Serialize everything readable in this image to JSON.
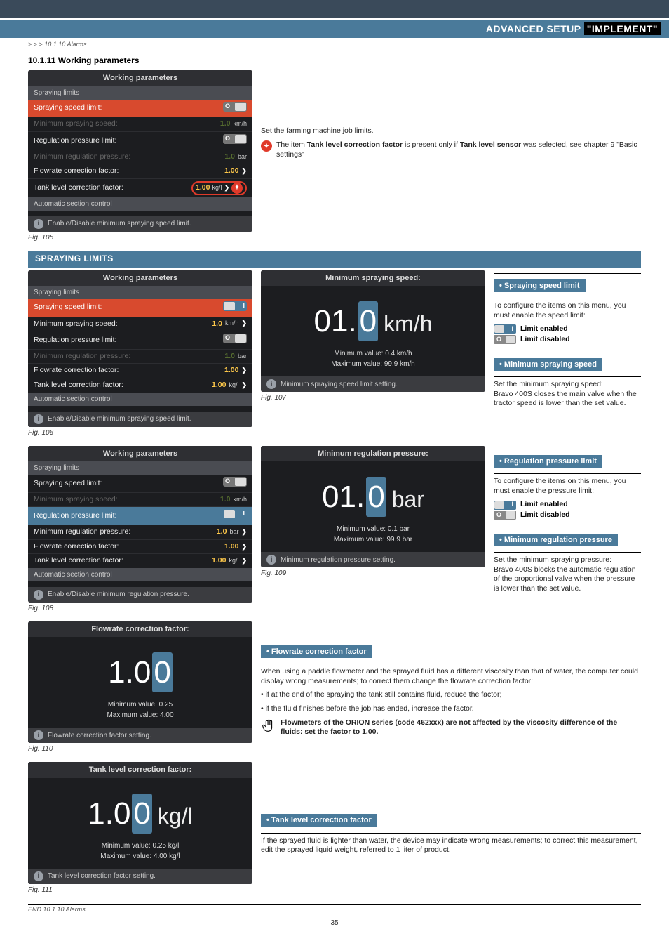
{
  "header": {
    "prefix": "ADVANCED SETUP",
    "highlight": "\"IMPLEMENT\""
  },
  "breadcrumb": "> > > 10.1.10 Alarms",
  "section_number": "10.1.11 Working parameters",
  "fig105": {
    "title": "Working parameters",
    "sub": "Spraying limits",
    "rows": [
      {
        "label": "Spraying speed limit:",
        "toggle": "off",
        "style": "sel"
      },
      {
        "label": "Minimum spraying speed:",
        "value": "1.0",
        "unit": "km/h",
        "style": "dim"
      },
      {
        "label": "Regulation pressure limit:",
        "toggle": "off",
        "style": ""
      },
      {
        "label": "Minimum regulation pressure:",
        "value": "1.0",
        "unit": "bar",
        "style": "dim"
      },
      {
        "label": "Flowrate correction factor:",
        "value": "1.00",
        "unit": "",
        "arrow": true,
        "style": ""
      },
      {
        "label": "Tank level correction factor:",
        "value": "1.00",
        "unit": "kg/l",
        "arrow": true,
        "style": "",
        "circled": true
      }
    ],
    "sub2": "Automatic section control",
    "info": "Enable/Disable minimum spraying speed limit.",
    "cap": "Fig. 105"
  },
  "note1": {
    "text": "Set the farming machine job limits.",
    "star_text_a": "The item ",
    "star_b1": "Tank level correction factor",
    "star_text_b": " is present only if ",
    "star_b2": "Tank level sensor",
    "star_text_c": " was selected, see chapter 9 \"Basic settings\""
  },
  "band_spraying": "SPRAYING LIMITS",
  "fig106": {
    "title": "Working parameters",
    "sub": "Spraying limits",
    "rows": [
      {
        "label": "Spraying speed limit:",
        "toggle": "on",
        "style": "sel"
      },
      {
        "label": "Minimum spraying speed:",
        "value": "1.0",
        "unit": "km/h",
        "arrow": true,
        "style": ""
      },
      {
        "label": "Regulation pressure limit:",
        "toggle": "off",
        "style": ""
      },
      {
        "label": "Minimum regulation pressure:",
        "value": "1.0",
        "unit": "bar",
        "style": "dim"
      },
      {
        "label": "Flowrate correction factor:",
        "value": "1.00",
        "unit": "",
        "arrow": true,
        "style": ""
      },
      {
        "label": "Tank level correction factor:",
        "value": "1.00",
        "unit": "kg/l",
        "arrow": true,
        "style": ""
      }
    ],
    "sub2": "Automatic section control",
    "info": "Enable/Disable minimum spraying speed limit.",
    "cap": "Fig. 106"
  },
  "fig107": {
    "title": "Minimum spraying speed:",
    "v1": "01.",
    "v_edit": "0",
    "unit": "km/h",
    "min_l": "Minimum value:",
    "min_v": "0.4 km/h",
    "max_l": "Maximum value:",
    "max_v": "99.9 km/h",
    "info": "Minimum spraying speed limit setting.",
    "cap": "Fig. 107"
  },
  "right1": {
    "tag1": "• Spraying speed limit",
    "t1": "To configure the items on this menu, you must enable the speed limit:",
    "on": "Limit enabled",
    "off": "Limit disabled",
    "tag2": "• Minimum spraying speed",
    "t2": "Set the minimum spraying speed:\nBravo 400S closes the main valve when the tractor speed is lower than the set value."
  },
  "fig108": {
    "title": "Working parameters",
    "sub": "Spraying limits",
    "rows": [
      {
        "label": "Spraying speed limit:",
        "toggle": "off",
        "style": ""
      },
      {
        "label": "Minimum spraying speed:",
        "value": "1.0",
        "unit": "km/h",
        "style": "dim"
      },
      {
        "label": "Regulation pressure limit:",
        "toggle": "on",
        "style": "sel-blue"
      },
      {
        "label": "Minimum regulation pressure:",
        "value": "1.0",
        "unit": "bar",
        "arrow": true,
        "style": ""
      },
      {
        "label": "Flowrate correction factor:",
        "value": "1.00",
        "unit": "",
        "arrow": true,
        "style": ""
      },
      {
        "label": "Tank level correction factor:",
        "value": "1.00",
        "unit": "kg/l",
        "arrow": true,
        "style": ""
      }
    ],
    "sub2": "Automatic section control",
    "info": "Enable/Disable minimum regulation pressure.",
    "cap": "Fig. 108"
  },
  "fig109": {
    "title": "Minimum regulation pressure:",
    "v1": "01.",
    "v_edit": "0",
    "unit": "bar",
    "min_l": "Minimum value:",
    "min_v": "0.1 bar",
    "max_l": "Maximum value:",
    "max_v": "99.9 bar",
    "info": "Minimum regulation pressure setting.",
    "cap": "Fig. 109"
  },
  "right2": {
    "tag1": "• Regulation pressure limit",
    "t1": "To configure the items on this menu, you must enable the pressure limit:",
    "on": "Limit enabled",
    "off": "Limit disabled",
    "tag2": "• Minimum regulation pressure",
    "t2": "Set the minimum spraying pressure:\nBravo 400S blocks the automatic regulation of the proportional valve when the pressure is lower than the set value."
  },
  "fig110": {
    "title": "Flowrate correction factor:",
    "v1": "1.0",
    "v_edit": "0",
    "unit": "",
    "min_l": "Minimum value:",
    "min_v": "0.25",
    "max_l": "Maximum value:",
    "max_v": "4.00",
    "info": "Flowrate correction factor setting.",
    "cap": "Fig. 110"
  },
  "flowrate": {
    "tag": "• Flowrate correction factor",
    "p1": "When using a paddle flowmeter and the sprayed fluid has a different viscosity than that of water, the computer could display wrong measurements; to correct them change the flowrate correction factor:",
    "b1": "• if at the end of the spraying the tank still contains fluid, reduce the factor;",
    "b2": "• if the fluid finishes before the job has ended, increase the factor.",
    "hand": "Flowmeters of the ORION series (code 462xxx) are not affected by the viscosity difference of the fluids: set the factor to 1.00."
  },
  "fig111": {
    "title": "Tank level correction factor:",
    "v1": "1.0",
    "v_edit": "0",
    "unit": "kg/l",
    "min_l": "Minimum value:",
    "min_v": "0.25 kg/l",
    "max_l": "Maximum value:",
    "max_v": "4.00 kg/l",
    "info": "Tank level correction factor setting.",
    "cap": "Fig. 111"
  },
  "tank": {
    "tag": "• Tank level correction factor",
    "p1": "If the sprayed fluid is lighter than water, the device may indicate wrong measurements; to correct this measurement, edit the sprayed liquid weight, referred to 1 liter of product."
  },
  "footer": "END 10.1.10 Alarms",
  "page": "35"
}
